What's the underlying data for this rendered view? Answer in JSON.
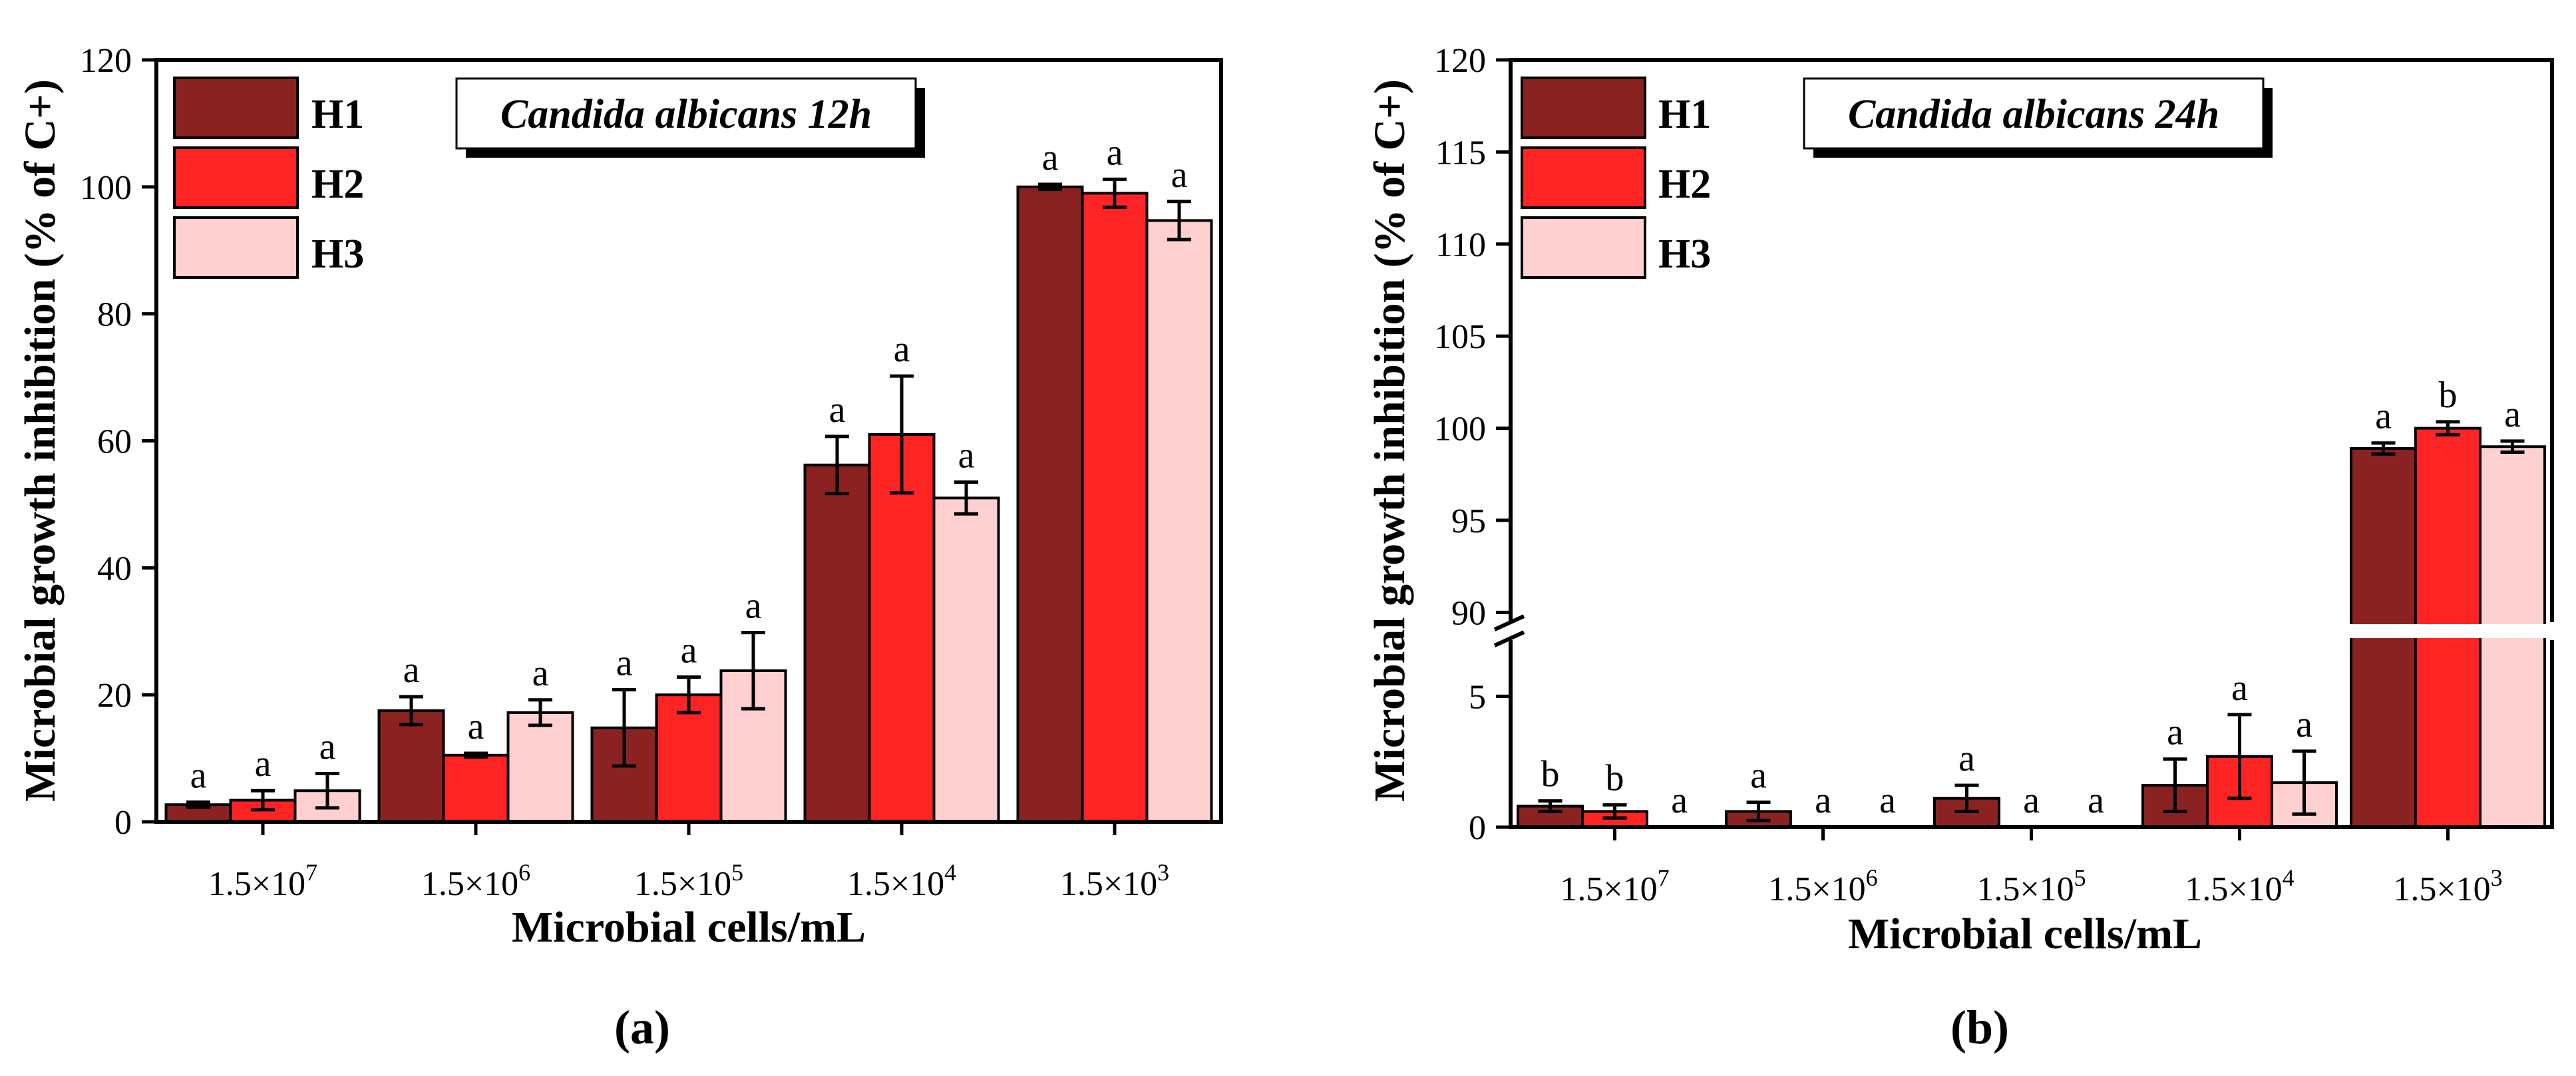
{
  "figure": {
    "panel_labels": [
      "(a)",
      "(b)"
    ]
  },
  "colors": {
    "H1": "#8b2222",
    "H2": "#ff2424",
    "H3": "#ffd0d0",
    "axis": "#000000"
  },
  "chart_data": [
    {
      "type": "bar",
      "panel": "(a)",
      "title": "Candida albicans 12h",
      "xlabel": "Microbial cells/mL",
      "ylabel": "Microbial growth inhibition (% of C+)",
      "categories": [
        {
          "mantissa": "1.5×10",
          "exponent": "7"
        },
        {
          "mantissa": "1.5×10",
          "exponent": "6"
        },
        {
          "mantissa": "1.5×10",
          "exponent": "5"
        },
        {
          "mantissa": "1.5×10",
          "exponent": "4"
        },
        {
          "mantissa": "1.5×10",
          "exponent": "3"
        }
      ],
      "ylim": [
        0,
        120
      ],
      "yticks": [
        0,
        20,
        40,
        60,
        80,
        100,
        120
      ],
      "legend": [
        "H1",
        "H2",
        "H3"
      ],
      "legend_position": "top-left",
      "series": [
        {
          "name": "H1",
          "values": [
            2.7,
            17.5,
            14.8,
            56.2,
            100.0
          ],
          "errors": [
            0.4,
            2.2,
            6.0,
            4.5,
            0.4
          ],
          "labels": [
            "a",
            "a",
            "a",
            "a",
            "a"
          ]
        },
        {
          "name": "H2",
          "values": [
            3.4,
            10.5,
            20.0,
            61.0,
            99.0
          ],
          "errors": [
            1.5,
            0.3,
            2.8,
            9.2,
            2.2
          ],
          "labels": [
            "a",
            "a",
            "a",
            "a",
            "a"
          ]
        },
        {
          "name": "H3",
          "values": [
            4.9,
            17.2,
            23.8,
            51.0,
            94.7
          ],
          "errors": [
            2.7,
            2.0,
            6.0,
            2.5,
            3.0
          ],
          "labels": [
            "a",
            "a",
            "a",
            "a",
            "a"
          ]
        }
      ]
    },
    {
      "type": "bar",
      "panel": "(b)",
      "title": "Candida albicans 24h",
      "xlabel": "Microbial cells/mL",
      "ylabel": "Microbial growth inhibition (% of C+)",
      "categories": [
        {
          "mantissa": "1.5×10",
          "exponent": "7"
        },
        {
          "mantissa": "1.5×10",
          "exponent": "6"
        },
        {
          "mantissa": "1.5×10",
          "exponent": "5"
        },
        {
          "mantissa": "1.5×10",
          "exponent": "4"
        },
        {
          "mantissa": "1.5×10",
          "exponent": "3"
        }
      ],
      "axis_break": {
        "lower": [
          0,
          7.5
        ],
        "upper": [
          89,
          120
        ]
      },
      "yticks_lower": [
        0,
        5
      ],
      "yticks_upper": [
        90,
        95,
        100,
        105,
        110,
        115,
        120
      ],
      "legend": [
        "H1",
        "H2",
        "H3"
      ],
      "legend_position": "top-left",
      "series": [
        {
          "name": "H1",
          "values": [
            0.8,
            0.6,
            1.1,
            1.6,
            98.9
          ],
          "errors": [
            0.2,
            0.35,
            0.5,
            1.0,
            0.3
          ],
          "labels": [
            "b",
            "a",
            "a",
            "a",
            "a"
          ]
        },
        {
          "name": "H2",
          "values": [
            0.6,
            0,
            0,
            2.7,
            100.0
          ],
          "errors": [
            0.25,
            0,
            0,
            1.6,
            0.35
          ],
          "labels": [
            "b",
            "a",
            "a",
            "a",
            "b"
          ]
        },
        {
          "name": "H3",
          "values": [
            0,
            0,
            0,
            1.7,
            99.0
          ],
          "errors": [
            0,
            0,
            0,
            1.2,
            0.3
          ],
          "labels": [
            "a",
            "a",
            "a",
            "a",
            "a"
          ]
        }
      ]
    }
  ]
}
